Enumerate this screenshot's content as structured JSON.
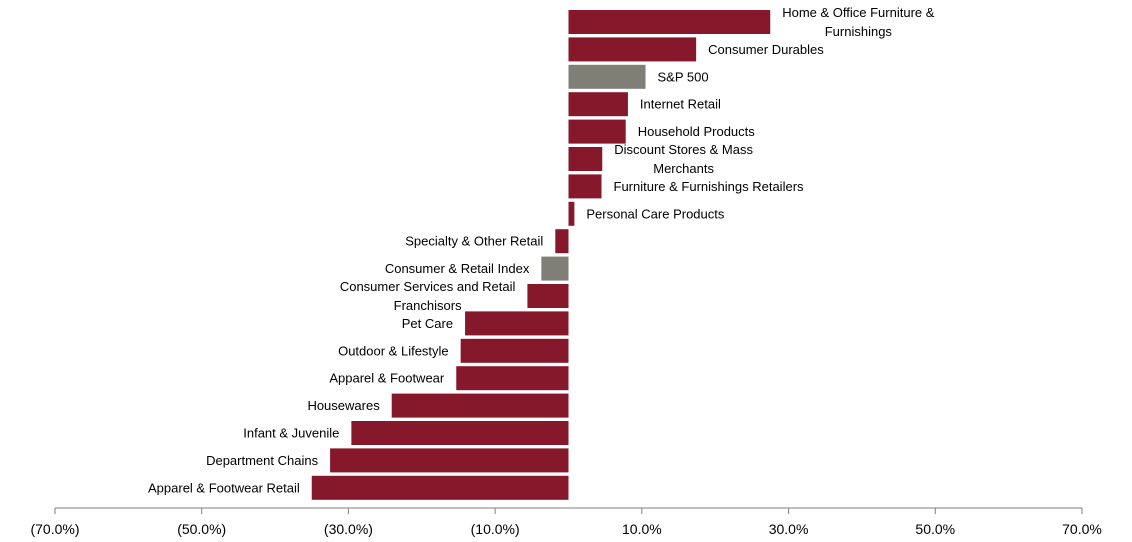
{
  "chart_data": {
    "type": "bar",
    "orientation": "horizontal",
    "title": "",
    "xlabel": "",
    "ylabel": "",
    "xlim": [
      -70,
      70
    ],
    "x_ticks": [
      -70,
      -50,
      -30,
      -10,
      10,
      30,
      50,
      70
    ],
    "x_tick_labels": [
      "(70.0%)",
      "(50.0%)",
      "(30.0%)",
      "(10.0%)",
      "10.0%",
      "30.0%",
      "50.0%",
      "70.0%"
    ],
    "grid": false,
    "legend": "none",
    "colors": {
      "sector": "#85182a",
      "benchmark": "#7f7f78"
    },
    "categories": [
      "Home & Office Furniture & Furnishings",
      "Consumer Durables",
      "S&P 500",
      "Internet Retail",
      "Household Products",
      "Discount Stores & Mass Merchants",
      "Furniture & Furnishings Retailers",
      "Personal Care Products",
      "Specialty & Other Retail",
      "Consumer & Retail Index",
      "Consumer Services and Retail Franchisors",
      "Pet Care",
      "Outdoor & Lifestyle",
      "Apparel & Footwear",
      "Housewares",
      "Infant & Juvenile",
      "Department Chains",
      "Apparel & Footwear Retail"
    ],
    "label_lines": [
      [
        "Home & Office Furniture &",
        "Furnishings"
      ],
      [
        "Consumer Durables"
      ],
      [
        "S&P 500"
      ],
      [
        "Internet Retail"
      ],
      [
        "Household Products"
      ],
      [
        "Discount Stores & Mass",
        "Merchants"
      ],
      [
        "Furniture & Furnishings Retailers"
      ],
      [
        "Personal Care Products"
      ],
      [
        "Specialty & Other Retail"
      ],
      [
        "Consumer & Retail Index"
      ],
      [
        "Consumer Services and Retail",
        "Franchisors"
      ],
      [
        "Pet Care"
      ],
      [
        "Outdoor & Lifestyle"
      ],
      [
        "Apparel & Footwear"
      ],
      [
        "Housewares"
      ],
      [
        "Infant & Juvenile"
      ],
      [
        "Department Chains"
      ],
      [
        "Apparel & Footwear Retail"
      ]
    ],
    "values": [
      27.5,
      17.4,
      10.5,
      8.1,
      7.8,
      4.6,
      4.5,
      0.8,
      -1.8,
      -3.7,
      -5.6,
      -14.1,
      -14.7,
      -15.3,
      -24.1,
      -29.6,
      -32.5,
      -35.0
    ],
    "benchmark": [
      false,
      false,
      true,
      false,
      false,
      false,
      false,
      false,
      false,
      true,
      false,
      false,
      false,
      false,
      false,
      false,
      false,
      false
    ]
  }
}
